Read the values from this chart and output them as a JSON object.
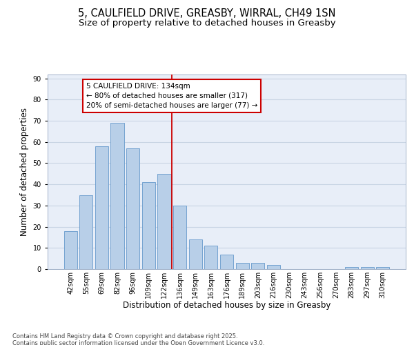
{
  "title1": "5, CAULFIELD DRIVE, GREASBY, WIRRAL, CH49 1SN",
  "title2": "Size of property relative to detached houses in Greasby",
  "xlabel": "Distribution of detached houses by size in Greasby",
  "ylabel": "Number of detached properties",
  "bar_labels": [
    "42sqm",
    "55sqm",
    "69sqm",
    "82sqm",
    "96sqm",
    "109sqm",
    "122sqm",
    "136sqm",
    "149sqm",
    "163sqm",
    "176sqm",
    "189sqm",
    "203sqm",
    "216sqm",
    "230sqm",
    "243sqm",
    "256sqm",
    "270sqm",
    "283sqm",
    "297sqm",
    "310sqm"
  ],
  "bar_values": [
    18,
    35,
    58,
    69,
    57,
    41,
    45,
    30,
    14,
    11,
    7,
    3,
    3,
    2,
    0,
    0,
    0,
    0,
    1,
    1,
    1
  ],
  "bar_color": "#b8cfe8",
  "bar_edge_color": "#6699cc",
  "annotation_text": "5 CAULFIELD DRIVE: 134sqm\n← 80% of detached houses are smaller (317)\n20% of semi-detached houses are larger (77) →",
  "vline_color": "#cc0000",
  "box_edge_color": "#cc0000",
  "ylim": [
    0,
    92
  ],
  "yticks": [
    0,
    10,
    20,
    30,
    40,
    50,
    60,
    70,
    80,
    90
  ],
  "grid_color": "#c8d4e4",
  "bg_color": "#e8eef8",
  "footer_text": "Contains HM Land Registry data © Crown copyright and database right 2025.\nContains public sector information licensed under the Open Government Licence v3.0.",
  "title_fontsize": 10.5,
  "subtitle_fontsize": 9.5,
  "tick_fontsize": 7,
  "ylabel_fontsize": 8.5,
  "xlabel_fontsize": 8.5,
  "annot_fontsize": 7.5,
  "footer_fontsize": 6.0
}
